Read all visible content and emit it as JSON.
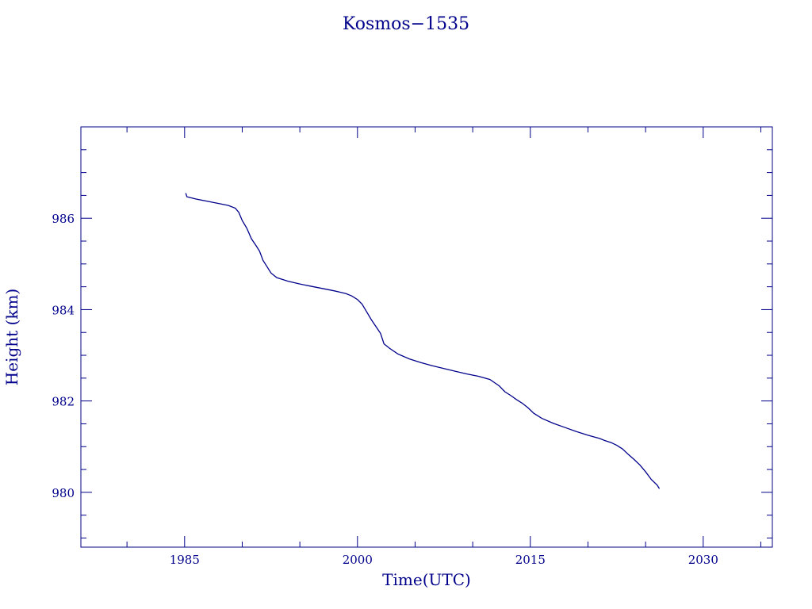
{
  "colors": {
    "ink": "#00008b",
    "background": "#ffffff"
  },
  "chart_data": {
    "type": "line",
    "title": "Kosmos−1535",
    "xlabel": "Time(UTC)",
    "ylabel": "Height (km)",
    "xlim": [
      1976,
      2036
    ],
    "ylim": [
      978.8,
      988.0
    ],
    "x_ticks": [
      1985,
      2000,
      2015,
      2030
    ],
    "x_tick_labels": [
      "1985",
      "2000",
      "2015",
      "2030"
    ],
    "y_ticks": [
      980,
      982,
      984,
      986
    ],
    "y_tick_labels": [
      "980",
      "982",
      "984",
      "986"
    ],
    "grid": false,
    "legend": "none",
    "series": [
      {
        "x": [
          1985.1,
          1985.2,
          1985.5,
          1986.0,
          1987.0,
          1988.0,
          1988.8,
          1989.4,
          1989.7,
          1990.0,
          1990.4,
          1990.8,
          1991.2,
          1991.5,
          1991.8,
          1992.2,
          1992.5,
          1993.0,
          1994.0,
          1995.0,
          1996.0,
          1997.0,
          1998.0,
          1998.5,
          1999.0,
          1999.5,
          2000.0,
          2000.4,
          2000.8,
          2001.2,
          2001.6,
          2002.0,
          2002.3,
          2002.8,
          2003.5,
          2004.5,
          2005.5,
          2006.5,
          2007.5,
          2008.5,
          2009.5,
          2010.5,
          2011.5,
          2011.9,
          2012.3,
          2012.8,
          2013.3,
          2013.8,
          2014.3,
          2014.8,
          2015.3,
          2016.0,
          2017.0,
          2018.0,
          2019.0,
          2020.0,
          2021.0,
          2021.5,
          2022.0,
          2022.5,
          2023.0,
          2023.5,
          2024.0,
          2024.5,
          2025.0,
          2025.5,
          2026.0,
          2026.2
        ],
        "y": [
          986.55,
          986.47,
          986.45,
          986.42,
          986.37,
          986.32,
          986.28,
          986.22,
          986.13,
          985.95,
          985.78,
          985.55,
          985.4,
          985.28,
          985.08,
          984.92,
          984.8,
          984.7,
          984.62,
          984.56,
          984.51,
          984.46,
          984.41,
          984.38,
          984.35,
          984.3,
          984.22,
          984.12,
          983.95,
          983.78,
          983.63,
          983.48,
          983.25,
          983.15,
          983.03,
          982.92,
          982.84,
          982.77,
          982.71,
          982.65,
          982.59,
          982.54,
          982.47,
          982.4,
          982.33,
          982.2,
          982.12,
          982.03,
          981.95,
          981.85,
          981.73,
          981.62,
          981.51,
          981.42,
          981.33,
          981.25,
          981.18,
          981.13,
          981.09,
          981.03,
          980.95,
          980.83,
          980.72,
          980.6,
          980.45,
          980.28,
          980.16,
          980.08
        ]
      }
    ]
  }
}
